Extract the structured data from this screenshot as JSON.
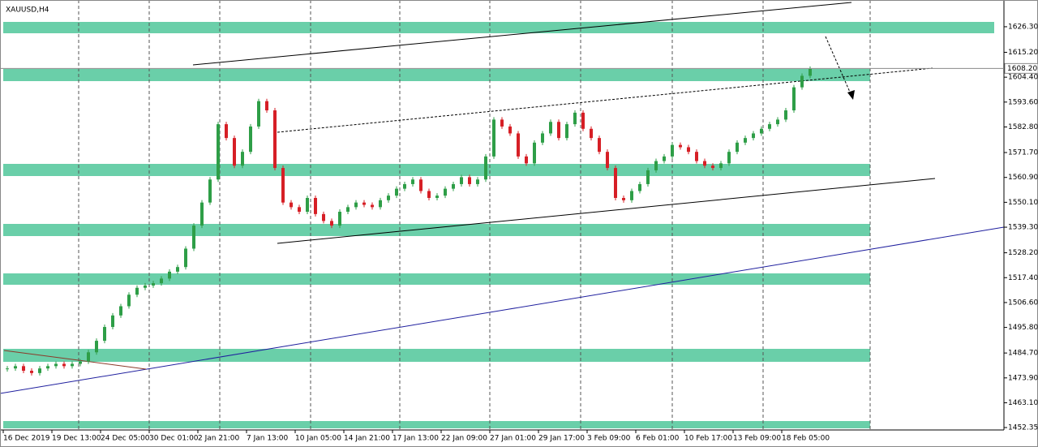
{
  "chart_data": {
    "type": "candlestick",
    "title": "XAUUSD,H4",
    "values": [
      1478,
      1479,
      1477,
      1476,
      1478,
      1479,
      1480,
      1479,
      1480,
      1481,
      1485,
      1490,
      1496,
      1501,
      1505,
      1510,
      1513,
      1514,
      1515,
      1517,
      1520,
      1522,
      1530,
      1540,
      1550,
      1560,
      1584,
      1578,
      1566,
      1572,
      1583,
      1594,
      1590,
      1565,
      1550,
      1548,
      1546,
      1552,
      1545,
      1542,
      1540,
      1546,
      1548,
      1550,
      1549,
      1548,
      1551,
      1553,
      1556,
      1558,
      1560,
      1555,
      1552,
      1553,
      1556,
      1558,
      1561,
      1558,
      1560,
      1570,
      1586,
      1583,
      1580,
      1570,
      1567,
      1576,
      1580,
      1585,
      1578,
      1584,
      1589,
      1582,
      1578,
      1572,
      1565,
      1552,
      1551,
      1555,
      1558,
      1564,
      1568,
      1570,
      1575,
      1574,
      1572,
      1568,
      1566,
      1565,
      1567,
      1572,
      1576,
      1578,
      1580,
      1582,
      1584,
      1586,
      1590,
      1600,
      1605,
      1608
    ],
    "up_color": "#2e9e47",
    "down_color": "#d61f26",
    "xlim": [
      -0.4,
      123.4
    ],
    "xticks": [
      {
        "value": 0,
        "label": "16 Dec 2019"
      },
      {
        "value": 6,
        "label": "19 Dec 13:00"
      },
      {
        "value": 12,
        "label": "24 Dec 05:00"
      },
      {
        "value": 18,
        "label": "30 Dec 01:00"
      },
      {
        "value": 24,
        "label": "2 Jan 21:00"
      },
      {
        "value": 30,
        "label": "7 Jan 13:00"
      },
      {
        "value": 36,
        "label": "10 Jan 05:00"
      },
      {
        "value": 42,
        "label": "14 Jan 21:00"
      },
      {
        "value": 48,
        "label": "17 Jan 13:00"
      },
      {
        "value": 54,
        "label": "22 Jan 09:00"
      },
      {
        "value": 60,
        "label": "27 Jan 01:00"
      },
      {
        "value": 66,
        "label": "29 Jan 17:00"
      },
      {
        "value": 72,
        "label": "3 Feb 09:00"
      },
      {
        "value": 78,
        "label": "6 Feb 01:00"
      },
      {
        "value": 84,
        "label": "10 Feb 17:00"
      },
      {
        "value": 90,
        "label": "13 Feb 09:00"
      },
      {
        "value": 96,
        "label": "18 Feb 05:00"
      }
    ],
    "ylim": [
      1451.3,
      1637.9
    ],
    "yticks": [
      {
        "value": 1626.3,
        "label": "1626.30"
      },
      {
        "value": 1615.2,
        "label": "1615.20"
      },
      {
        "value": 1604.4,
        "label": "1604.40"
      },
      {
        "value": 1593.6,
        "label": "1593.60"
      },
      {
        "value": 1582.8,
        "label": "1582.80"
      },
      {
        "value": 1571.7,
        "label": "1571.70"
      },
      {
        "value": 1560.9,
        "label": "1560.90"
      },
      {
        "value": 1550.1,
        "label": "1550.10"
      },
      {
        "value": 1539.3,
        "label": "1539.30"
      },
      {
        "value": 1528.2,
        "label": "1528.20"
      },
      {
        "value": 1517.4,
        "label": "1517.40"
      },
      {
        "value": 1506.6,
        "label": "1506.60"
      },
      {
        "value": 1495.8,
        "label": "1495.80"
      },
      {
        "value": 1484.7,
        "label": "1484.70"
      },
      {
        "value": 1473.9,
        "label": "1473.90"
      },
      {
        "value": 1463.1,
        "label": "1463.10"
      },
      {
        "value": 1452.35,
        "label": "1452.35"
      }
    ],
    "current_price": {
      "value": 1608.2,
      "label": "1608.20"
    }
  }
}
